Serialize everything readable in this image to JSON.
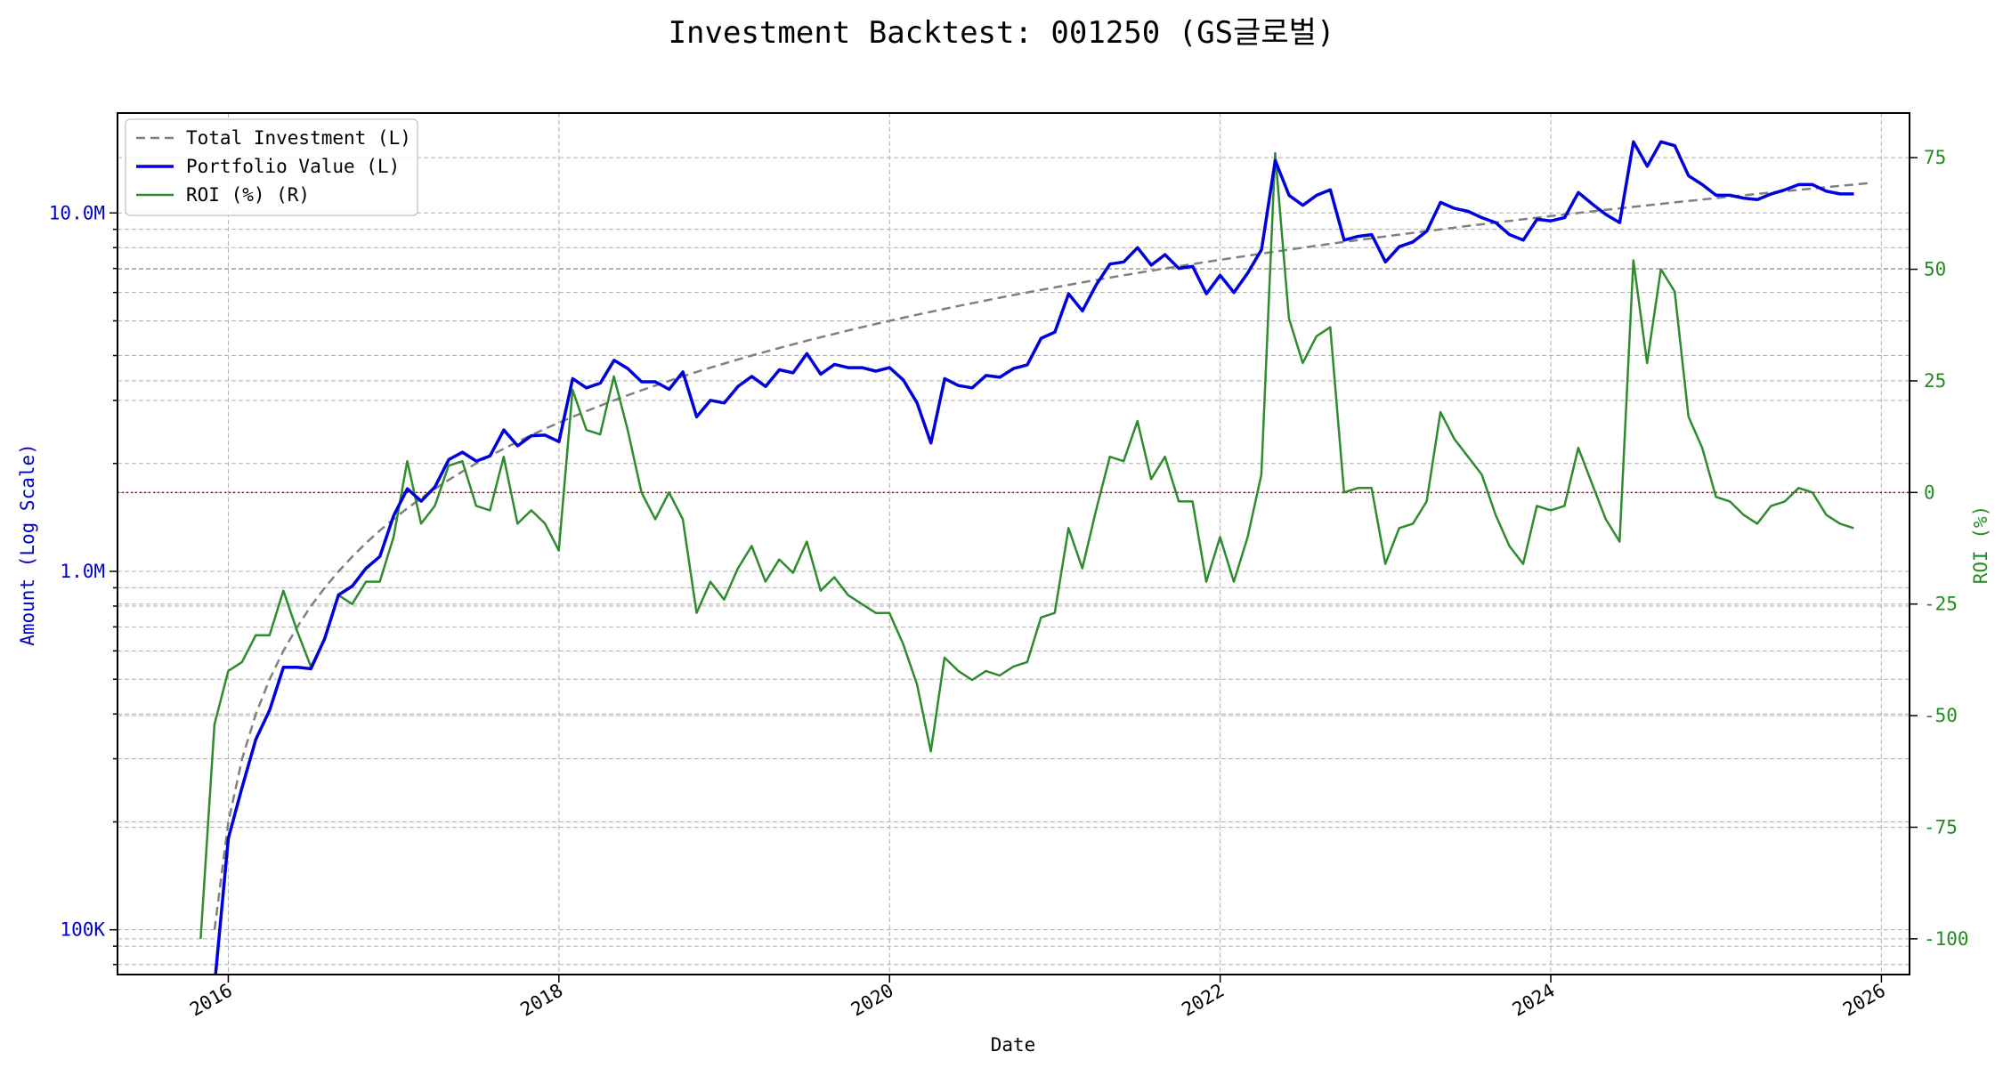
{
  "chart_data": {
    "type": "line",
    "title": "Investment Backtest: 001250 (GS글로벌)",
    "xlabel": "Date",
    "ylabel_left": "Amount (Log Scale)",
    "ylabel_right": "ROI (%)",
    "left_axis": {
      "scale": "log",
      "range": [
        75000,
        19000000
      ],
      "ticks": [
        100000,
        1000000,
        10000000
      ],
      "tick_labels": [
        "100K",
        "1.0M",
        "10.0M"
      ],
      "color": "#0000cc"
    },
    "right_axis": {
      "scale": "linear",
      "range": [
        -108,
        85
      ],
      "ticks": [
        -100,
        -75,
        -50,
        -25,
        0,
        25,
        50,
        75
      ],
      "tick_labels": [
        "-100",
        "-75",
        "-50",
        "-25",
        "0",
        "25",
        "50",
        "75"
      ],
      "color": "#228B22"
    },
    "x_axis": {
      "range": [
        2015.33,
        2026.17
      ],
      "ticks": [
        2016,
        2018,
        2020,
        2022,
        2024,
        2026
      ],
      "tick_labels": [
        "2016",
        "2018",
        "2020",
        "2022",
        "2024",
        "2026"
      ]
    },
    "grid": true,
    "legend_position": "top-left",
    "zero_line": {
      "axis": "right",
      "value": 0,
      "color": "#cc0000",
      "style": "dotted"
    },
    "series": [
      {
        "name": "Total Investment (L)",
        "axis": "left",
        "color": "#808080",
        "style": "dashed",
        "x_start": 2015.917,
        "x_step": 0.08333,
        "values": [
          100000,
          200000,
          300000,
          400000,
          500000,
          600000,
          700000,
          800000,
          900000,
          1000000,
          1100000,
          1200000,
          1300000,
          1400000,
          1500000,
          1600000,
          1700000,
          1800000,
          1900000,
          2000000,
          2100000,
          2200000,
          2300000,
          2400000,
          2500000,
          2600000,
          2700000,
          2800000,
          2900000,
          3000000,
          3100000,
          3200000,
          3300000,
          3400000,
          3500000,
          3600000,
          3700000,
          3800000,
          3900000,
          4000000,
          4100000,
          4200000,
          4300000,
          4400000,
          4500000,
          4600000,
          4700000,
          4800000,
          4900000,
          5000000,
          5100000,
          5200000,
          5300000,
          5400000,
          5500000,
          5600000,
          5700000,
          5800000,
          5900000,
          6000000,
          6100000,
          6200000,
          6300000,
          6400000,
          6500000,
          6600000,
          6700000,
          6800000,
          6900000,
          7000000,
          7100000,
          7200000,
          7300000,
          7400000,
          7500000,
          7600000,
          7700000,
          7800000,
          7900000,
          8000000,
          8100000,
          8200000,
          8300000,
          8400000,
          8500000,
          8600000,
          8700000,
          8800000,
          8900000,
          9000000,
          9100000,
          9200000,
          9300000,
          9400000,
          9500000,
          9600000,
          9700000,
          9800000,
          9900000,
          10000000,
          10100000,
          10200000,
          10300000,
          10400000,
          10500000,
          10600000,
          10700000,
          10800000,
          10900000,
          11000000,
          11100000,
          11200000,
          11300000,
          11400000,
          11500000,
          11600000,
          11700000,
          11800000,
          11900000,
          12000000,
          12100000
        ]
      },
      {
        "name": "Portfolio Value (L)",
        "axis": "left",
        "color": "#0000dd",
        "style": "solid",
        "x_start": 2015.917,
        "x_step": 0.08333,
        "values": [
          70000,
          180000,
          250000,
          340000,
          410000,
          540000,
          540000,
          535000,
          650000,
          860000,
          910000,
          1020000,
          1100000,
          1430000,
          1700000,
          1570000,
          1720000,
          2050000,
          2150000,
          2030000,
          2100000,
          2480000,
          2240000,
          2390000,
          2400000,
          2300000,
          3450000,
          3250000,
          3350000,
          3880000,
          3680000,
          3380000,
          3380000,
          3220000,
          3600000,
          2700000,
          3000000,
          2950000,
          3280000,
          3500000,
          3280000,
          3650000,
          3580000,
          4050000,
          3550000,
          3780000,
          3700000,
          3700000,
          3620000,
          3700000,
          3420000,
          2950000,
          2280000,
          3450000,
          3300000,
          3250000,
          3520000,
          3480000,
          3680000,
          3770000,
          4470000,
          4650000,
          5950000,
          5330000,
          6300000,
          7200000,
          7300000,
          8000000,
          7150000,
          7650000,
          7000000,
          7100000,
          5950000,
          6700000,
          6000000,
          6800000,
          7900000,
          14000000,
          11200000,
          10500000,
          11200000,
          11600000,
          8400000,
          8600000,
          8700000,
          7300000,
          8050000,
          8300000,
          8900000,
          10700000,
          10300000,
          10100000,
          9700000,
          9400000,
          8700000,
          8400000,
          9600000,
          9500000,
          9700000,
          11400000,
          10600000,
          9900000,
          9400000,
          15800000,
          13500000,
          15800000,
          15400000,
          12700000,
          12000000,
          11200000,
          11200000,
          11000000,
          10900000,
          11300000,
          11600000,
          12000000,
          12000000,
          11500000,
          11300000,
          11300000
        ]
      },
      {
        "name": "ROI (%) (R)",
        "axis": "right",
        "color": "#2e8b2e",
        "style": "solid",
        "x_start": 2015.833,
        "x_step": 0.08333,
        "values": [
          -100,
          -52,
          -40,
          -38,
          -32,
          -32,
          -22,
          -31,
          -39,
          -33,
          -23,
          -25,
          -20,
          -20,
          -10,
          7,
          -7,
          -3,
          6,
          7,
          -3,
          -4,
          8,
          -7,
          -4,
          -7,
          -13,
          23,
          14,
          13,
          26,
          14,
          0,
          -6,
          0,
          -6,
          -27,
          -20,
          -24,
          -17,
          -12,
          -20,
          -15,
          -18,
          -11,
          -22,
          -19,
          -23,
          -25,
          -27,
          -27,
          -34,
          -43,
          -58,
          -37,
          -40,
          -42,
          -40,
          -41,
          -39,
          -38,
          -28,
          -27,
          -8,
          -17,
          -4,
          8,
          7,
          16,
          3,
          8,
          -2,
          -2,
          -20,
          -10,
          -20,
          -10,
          4,
          76,
          39,
          29,
          35,
          37,
          0,
          1,
          1,
          -16,
          -8,
          -7,
          -2,
          18,
          12,
          8,
          4,
          -5,
          -12,
          -16,
          -3,
          -4,
          -3,
          10,
          2,
          -6,
          -11,
          52,
          29,
          50,
          45,
          17,
          10,
          -1,
          -2,
          -5,
          -7,
          -3,
          -2,
          1,
          0,
          -5,
          -7,
          -8
        ]
      }
    ]
  }
}
